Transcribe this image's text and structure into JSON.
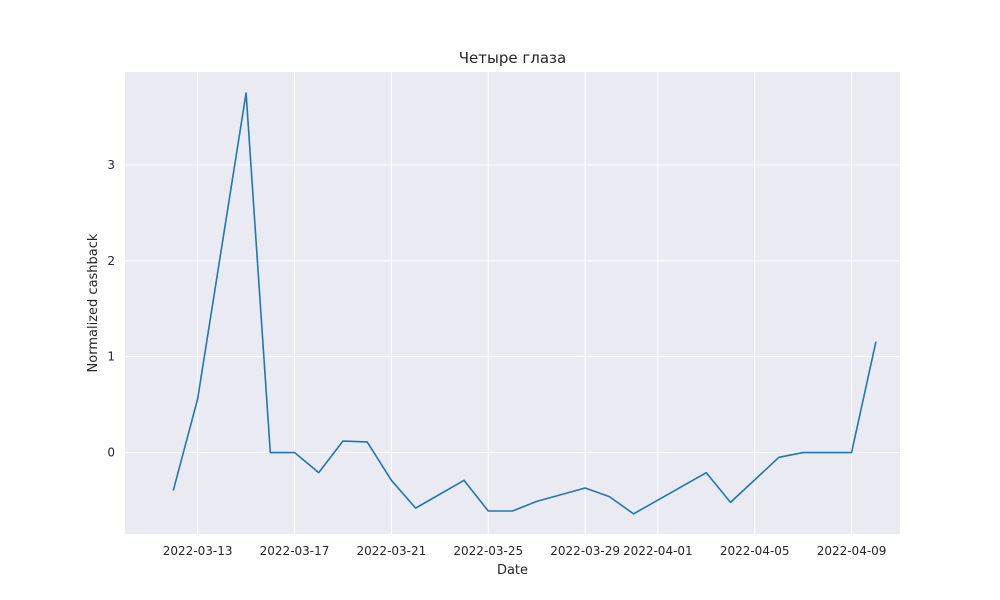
{
  "chart_data": {
    "type": "line",
    "title": "Четыре глаза",
    "xlabel": "Date",
    "ylabel": "Normalized cashback",
    "grid": true,
    "legend": "none",
    "background_color": "#eaeaf2",
    "line_color": "#1f77b4",
    "ylim": [
      -0.85,
      3.97
    ],
    "xlim": [
      "2022-03-10",
      "2022-04-11"
    ],
    "x_ticks": [
      "2022-03-13",
      "2022-03-17",
      "2022-03-21",
      "2022-03-25",
      "2022-03-29",
      "2022-04-01",
      "2022-04-05",
      "2022-04-09"
    ],
    "y_ticks": [
      0,
      1,
      2,
      3
    ],
    "series": [
      {
        "x": [
          "2022-03-12",
          "2022-03-13",
          "2022-03-15",
          "2022-03-16",
          "2022-03-17",
          "2022-03-18",
          "2022-03-19",
          "2022-03-20",
          "2022-03-21",
          "2022-03-22",
          "2022-03-24",
          "2022-03-25",
          "2022-03-26",
          "2022-03-27",
          "2022-03-29",
          "2022-03-30",
          "2022-03-31",
          "2022-04-03",
          "2022-04-04",
          "2022-04-06",
          "2022-04-07",
          "2022-04-08",
          "2022-04-09",
          "2022-04-10"
        ],
        "values": [
          -0.39,
          0.56,
          3.75,
          0.0,
          0.0,
          -0.21,
          0.12,
          0.11,
          -0.29,
          -0.58,
          -0.29,
          -0.61,
          -0.61,
          -0.51,
          -0.37,
          -0.46,
          -0.64,
          -0.21,
          -0.52,
          -0.05,
          0.0,
          0.0,
          0.0,
          1.15
        ]
      }
    ]
  }
}
